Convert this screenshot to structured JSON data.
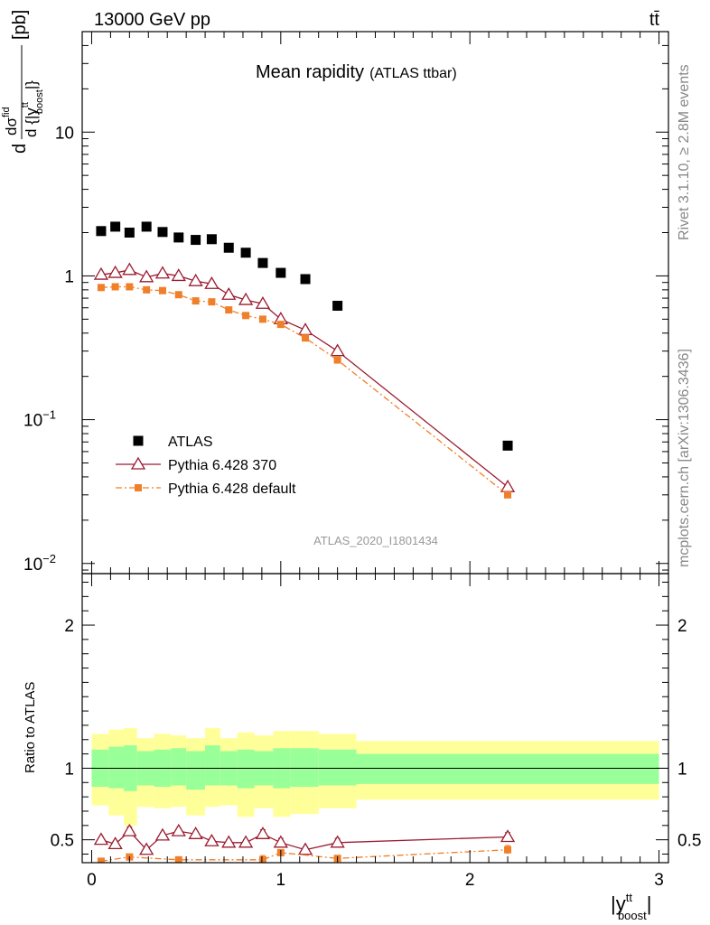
{
  "header": {
    "left": "13000 GeV pp",
    "right": "tt̄"
  },
  "side": {
    "rivet": "Rivet 3.1.10, ≥ 2.8M events",
    "mcplots": "mcplots.cern.ch [arXiv:1306.3436]"
  },
  "chart_data": [
    {
      "type": "scatter",
      "title": "Mean rapidity",
      "subtitle": "(ATLAS ttbar)",
      "watermark": "ATLAS_2020_I1801434",
      "ylabel": {
        "pre": "d",
        "num": "dσ",
        "num_sup": "fid",
        "den": "d {|y",
        "den_sup": "tt",
        "den_sub": "boost",
        "den_close": "|}",
        "unit": "[pb]"
      },
      "yscale": "log",
      "ylim": [
        0.0085,
        50
      ],
      "xlim": [
        -0.05,
        3.05
      ],
      "yticks": [
        {
          "v": 0.01,
          "label": "10",
          "exp": "−2"
        },
        {
          "v": 0.1,
          "label": "10",
          "exp": "−1"
        },
        {
          "v": 1,
          "label": "1",
          "exp": ""
        },
        {
          "v": 10,
          "label": "10",
          "exp": ""
        }
      ],
      "legend_position": "lower-left",
      "x": [
        0.05,
        0.125,
        0.2,
        0.29,
        0.375,
        0.46,
        0.55,
        0.635,
        0.725,
        0.815,
        0.905,
        1.0,
        1.13,
        1.3,
        2.2
      ],
      "series": [
        {
          "name": "ATLAS",
          "color": "#000000",
          "marker": "square",
          "values": [
            2.05,
            2.2,
            2.0,
            2.2,
            2.02,
            1.85,
            1.78,
            1.8,
            1.57,
            1.45,
            1.23,
            1.05,
            0.95,
            0.62,
            0.066
          ]
        },
        {
          "name": "Pythia 6.428 370",
          "color": "#9b1b30",
          "marker": "triangle",
          "line": "solid",
          "values": [
            1.02,
            1.05,
            1.1,
            0.98,
            1.04,
            1.0,
            0.92,
            0.88,
            0.74,
            0.68,
            0.64,
            0.5,
            0.42,
            0.3,
            0.034
          ]
        },
        {
          "name": "Pythia 6.428 default",
          "color": "#f07f2a",
          "marker": "square-small",
          "line": "dashdot",
          "values": [
            0.83,
            0.84,
            0.84,
            0.8,
            0.79,
            0.74,
            0.67,
            0.66,
            0.58,
            0.53,
            0.5,
            0.46,
            0.37,
            0.26,
            0.03
          ]
        }
      ]
    },
    {
      "type": "scatter",
      "ylabel": "Ratio to ATLAS",
      "xlabel": {
        "main": "|y",
        "sup": "tt",
        "sub": "boost",
        "close": "|"
      },
      "ylim": [
        0.34,
        2.36
      ],
      "xlim": [
        -0.05,
        3.05
      ],
      "yticks": [
        0.5,
        1,
        2
      ],
      "ytick_labels": [
        "0.5",
        "1",
        "2"
      ],
      "xticks": [
        0,
        1,
        2,
        3
      ],
      "xtick_labels": [
        "0",
        "1",
        "2",
        "3"
      ],
      "reference": 1,
      "bands": {
        "edges": [
          0,
          0.09,
          0.17,
          0.24,
          0.33,
          0.42,
          0.5,
          0.6,
          0.68,
          0.77,
          0.86,
          0.96,
          1.05,
          1.2,
          1.4,
          3.0
        ],
        "yellow_lo": [
          0.74,
          0.67,
          0.6,
          0.73,
          0.72,
          0.73,
          0.67,
          0.73,
          0.74,
          0.66,
          0.72,
          0.66,
          0.68,
          0.72,
          0.78
        ],
        "yellow_hi": [
          1.24,
          1.27,
          1.28,
          1.21,
          1.24,
          1.23,
          1.21,
          1.28,
          1.21,
          1.25,
          1.23,
          1.26,
          1.26,
          1.24,
          1.19
        ],
        "green_lo": [
          0.87,
          0.86,
          0.84,
          0.88,
          0.87,
          0.88,
          0.85,
          0.88,
          0.88,
          0.86,
          0.88,
          0.86,
          0.87,
          0.88,
          0.89
        ],
        "green_hi": [
          1.13,
          1.15,
          1.16,
          1.12,
          1.13,
          1.14,
          1.12,
          1.16,
          1.12,
          1.13,
          1.12,
          1.14,
          1.14,
          1.13,
          1.1
        ],
        "yellow_color": "#ffff99",
        "green_color": "#99ff99"
      },
      "series": [
        {
          "name": "Pythia 6.428 370",
          "color": "#9b1b30",
          "marker": "triangle",
          "line": "solid",
          "x": [
            0.05,
            0.125,
            0.2,
            0.29,
            0.375,
            0.46,
            0.55,
            0.635,
            0.725,
            0.815,
            0.905,
            1.0,
            1.13,
            1.3,
            2.2
          ],
          "values": [
            0.5,
            0.47,
            0.56,
            0.43,
            0.53,
            0.56,
            0.54,
            0.49,
            0.48,
            0.48,
            0.54,
            0.48,
            0.43,
            0.48,
            0.52
          ],
          "err": [
            0.02,
            0.02,
            0.03,
            0.02,
            0.02,
            0.02,
            0.02,
            0.02,
            0.02,
            0.02,
            0.03,
            0.03,
            0.02,
            0.03,
            0.03
          ]
        },
        {
          "name": "Pythia 6.428 default",
          "color": "#f07f2a",
          "marker": "square-small",
          "line": "dashdot",
          "x": [
            0.05,
            0.2,
            0.46,
            0.905,
            1.0,
            1.3,
            2.2
          ],
          "values": [
            0.35,
            0.38,
            0.36,
            0.36,
            0.41,
            0.37,
            0.43
          ],
          "err": [
            0.02,
            0.02,
            0.02,
            0.03,
            0.02,
            0.02,
            0.03
          ]
        }
      ]
    }
  ]
}
